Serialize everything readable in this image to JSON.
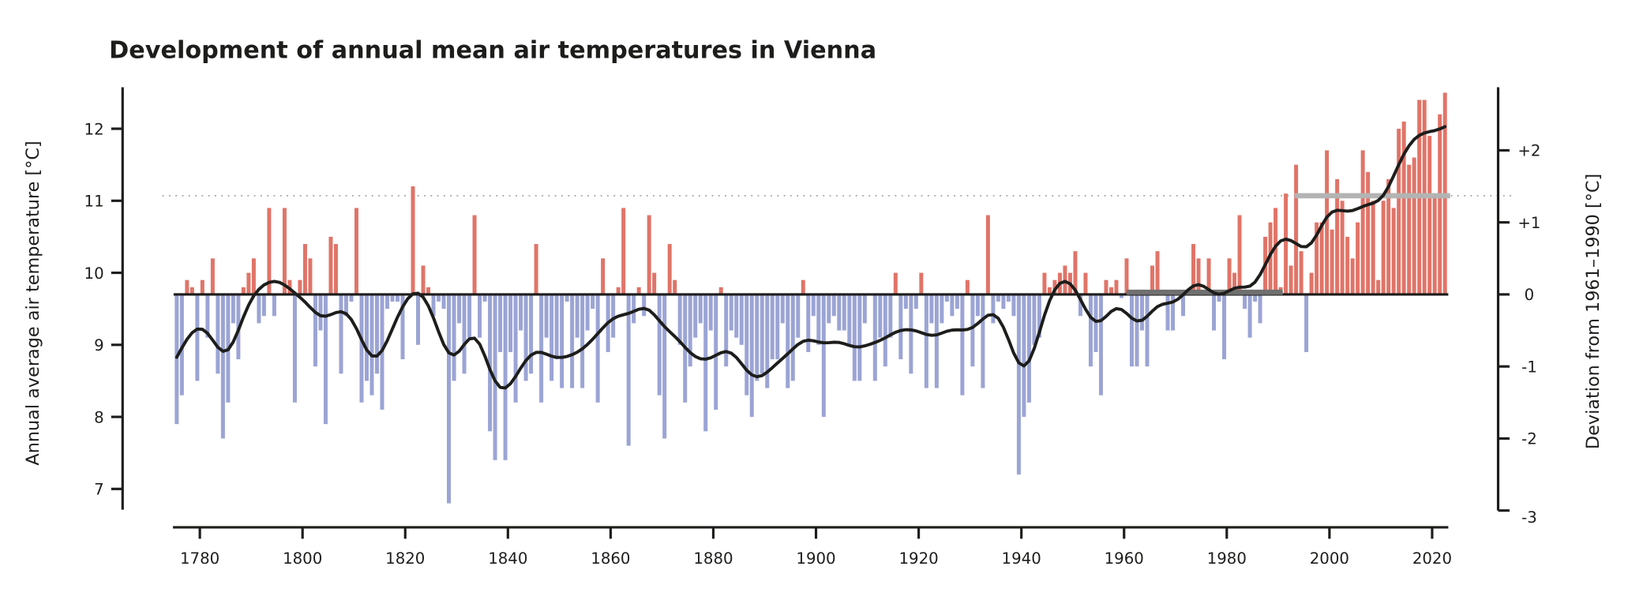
{
  "chart_data": {
    "type": "bar",
    "title": "Development of annual mean air temperatures in Vienna",
    "ylabel": "Annual average air temperature [°C]",
    "y2label": "Deviation from 1961–1990 [°C]",
    "xlabel": "",
    "xlim": [
      1775,
      2023
    ],
    "ylim": [
      6.7,
      12.6
    ],
    "x_ticks": [
      "1780",
      "1800",
      "1820",
      "1840",
      "1860",
      "1880",
      "1900",
      "1920",
      "1940",
      "1960",
      "1980",
      "2000",
      "2020"
    ],
    "y_ticks": [
      "12",
      "11",
      "10",
      "9",
      "8",
      "7"
    ],
    "y2_ticks": [
      "+2",
      "+1",
      "0",
      "-1",
      "-2",
      "-3"
    ],
    "y2_tick_values": [
      2,
      1,
      0,
      -1,
      -2,
      -3
    ],
    "baseline_1961_1990": 9.7,
    "reference_line_1961_1990": {
      "from": 1961,
      "to": 1990,
      "value": 9.73,
      "color": "#707070"
    },
    "recent_mean_line": {
      "from": 1994,
      "to": 2023,
      "value": 11.07,
      "color": "#b3b3b3"
    },
    "grid": false,
    "colors": {
      "above": "#e07468",
      "below": "#9ba4d4",
      "smoothed": "#1d1d1b",
      "dotted": "#aaaaaa"
    },
    "start_year": 1776,
    "values": [
      7.9,
      8.3,
      9.9,
      9.8,
      8.5,
      9.9,
      9.1,
      10.2,
      8.6,
      7.7,
      8.2,
      9.3,
      8.8,
      9.8,
      10.0,
      10.2,
      9.3,
      9.4,
      10.9,
      9.4,
      9.7,
      10.9,
      9.9,
      8.2,
      9.9,
      10.4,
      10.2,
      8.7,
      9.2,
      7.9,
      10.5,
      10.4,
      8.6,
      9.4,
      9.6,
      10.9,
      8.2,
      8.5,
      8.3,
      8.6,
      8.1,
      9.5,
      9.6,
      9.6,
      8.8,
      9.7,
      11.2,
      9.0,
      10.1,
      9.8,
      9.4,
      9.6,
      9.5,
      6.8,
      8.5,
      9.3,
      8.6,
      9.1,
      10.8,
      9.1,
      9.6,
      7.8,
      7.4,
      8.9,
      7.4,
      8.9,
      8.2,
      9.2,
      8.5,
      8.6,
      10.4,
      8.2,
      9.1,
      8.5,
      8.8,
      8.4,
      9.6,
      8.4,
      9.1,
      8.4,
      9.2,
      9.5,
      8.2,
      10.2,
      8.9,
      9.1,
      9.8,
      10.9,
      7.6,
      9.3,
      9.8,
      9.4,
      10.8,
      10.0,
      8.3,
      7.7,
      10.4,
      9.9,
      9.0,
      8.2,
      8.7,
      9.1,
      9.3,
      7.8,
      9.2,
      8.1,
      9.8,
      8.7,
      9.2,
      9.1,
      9.0,
      8.3,
      8.0,
      8.5,
      8.6,
      8.4,
      8.8,
      8.8,
      9.3,
      8.4,
      8.5,
      9.1,
      9.9,
      8.9,
      9.4,
      9.0,
      8.0,
      9.3,
      9.4,
      9.2,
      9.2,
      9.0,
      8.5,
      8.5,
      9.3,
      9.7,
      8.5,
      9.1,
      8.7,
      9.1,
      10.0,
      8.8,
      9.5,
      8.6,
      9.5,
      10.0,
      8.4,
      9.3,
      8.4,
      9.3,
      9.6,
      9.4,
      9.5,
      8.3,
      9.9,
      8.7,
      9.4,
      8.4,
      10.8,
      9.3,
      9.6,
      9.5,
      9.6,
      9.4,
      7.2,
      8.0,
      8.2,
      9.0,
      9.1,
      10.0,
      9.8,
      9.9,
      10.0,
      10.1,
      10.0,
      10.3,
      9.4,
      10.0,
      8.7,
      8.9,
      8.3,
      9.9,
      9.8,
      9.9,
      9.65,
      10.2,
      8.7,
      8.7,
      9.2,
      8.7,
      10.1,
      10.3,
      9.7,
      9.2,
      9.2,
      9.7,
      9.4,
      9.7,
      10.4,
      10.2,
      9.7,
      10.2,
      9.2,
      9.6,
      8.8,
      10.2,
      10.0,
      10.8,
      9.5,
      9.1,
      9.6,
      9.3,
      10.5,
      10.7,
      10.9,
      9.8,
      11.1,
      10.1,
      11.5,
      10.3,
      8.9,
      10.0,
      10.7,
      10.7,
      11.7,
      10.6,
      11.3,
      11.0,
      10.5,
      10.2,
      10.7,
      11.7,
      11.4,
      11.0,
      9.9,
      11.0,
      11.3,
      10.9,
      12.0,
      12.1,
      11.5,
      11.6,
      12.4,
      12.4,
      11.9,
      11.1,
      12.2,
      12.5
    ]
  }
}
